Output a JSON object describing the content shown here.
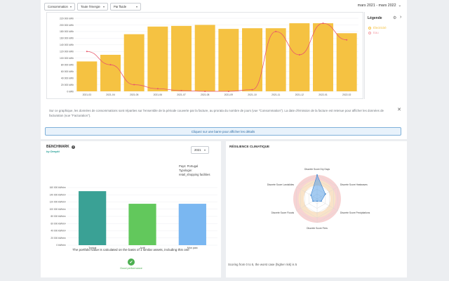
{
  "filters": {
    "metric": "Consommation",
    "energy": "Toute l'énergie",
    "fluid": "Par fluide",
    "period": "mars 2021 - mars 2022"
  },
  "legend": {
    "title": "Légende",
    "items": [
      {
        "label": "Électricité",
        "color": "#f5c242"
      },
      {
        "label": "Eau",
        "color": "#f4a0a8"
      }
    ]
  },
  "chart_data": [
    {
      "type": "bar",
      "categories": [
        "2021-03",
        "2021-04",
        "2021-05",
        "2021-06",
        "2021-07",
        "2021-08",
        "2021-09",
        "2021-10",
        "2021-11",
        "2021-12",
        "2022-01",
        "2022-02"
      ],
      "y_ticks": [
        "0 kWh",
        "20 000 kWh",
        "40 000 kWh",
        "60 000 kWh",
        "80 000 kWh",
        "100 000 kWh",
        "120 000 kWh",
        "140 000 kWh",
        "160 000 kWh",
        "180 000 kWh",
        "200 000 kWh",
        "220 000 kWh"
      ],
      "ylim": [
        0,
        220000
      ],
      "series": [
        {
          "values": [
            90000,
            110000,
            172000,
            195000,
            197000,
            200000,
            188000,
            190000,
            190000,
            205000,
            205000,
            175000
          ],
          "color": "#f5c242"
        },
        {
          "values": [
            120000,
            80000,
            20000,
            8000,
            2000,
            0,
            0,
            5000,
            180000,
            110000,
            205000,
            155000
          ],
          "color": "#e8576b"
        }
      ]
    },
    {
      "type": "bar",
      "categories": [
        "Typical",
        "Actif",
        "Mon parc"
      ],
      "y_ticks": [
        "0 kWh/m²",
        "20 000 kWh/m²",
        "40 000 kWh/m²",
        "60 000 kWh/m²",
        "80 000 kWh/m²",
        "100 000 kWh/m²",
        "120 000 kWh/m²",
        "140 000 kWh/m²",
        "160 000 kWh/m²"
      ],
      "ylim": [
        0,
        160000
      ],
      "values": [
        150000,
        115000,
        115000
      ],
      "colors": [
        "#3aa195",
        "#62c85c",
        "#7ab7f1"
      ]
    },
    {
      "type": "radar",
      "axes": [
        "Discrete Score Dry Days",
        "Discrete Score Heatwaves",
        "Discrete Score Precipitations",
        "Discrete Score Fires",
        "Discrete Score Floods",
        "Discrete Score Landslides"
      ],
      "values": [
        5,
        2,
        1,
        0.5,
        1,
        1.5
      ],
      "range": [
        0,
        5
      ]
    }
  ],
  "info": {
    "text": "Sur ce graphique, les données de consommations sont réparties sur l'ensemble de la période couverte par la facture, au prorata du nombre de jours (vue \"Consommation\"). La date d'émission de la facture est retenue pour afficher les données de facturation (vue \"Facturation\").",
    "hint": "Cliquez sur une barre pour afficher les détails"
  },
  "benchmark": {
    "title": "BENCHMARK",
    "subtitle": "by Deepki",
    "year": "2021",
    "asset_info": [
      "Pays: Portugal",
      "Typologie:",
      "retail_shopping facilities"
    ],
    "note": "The portfolio value is calculated on the basis of 1 similar assets, including this one",
    "badge_label": "Good performance"
  },
  "resilience": {
    "title": "RÉSILIENCE CLIMATIQUE",
    "note": "Scoring from 0 to 5, the worst case (higher risk) is 5"
  }
}
